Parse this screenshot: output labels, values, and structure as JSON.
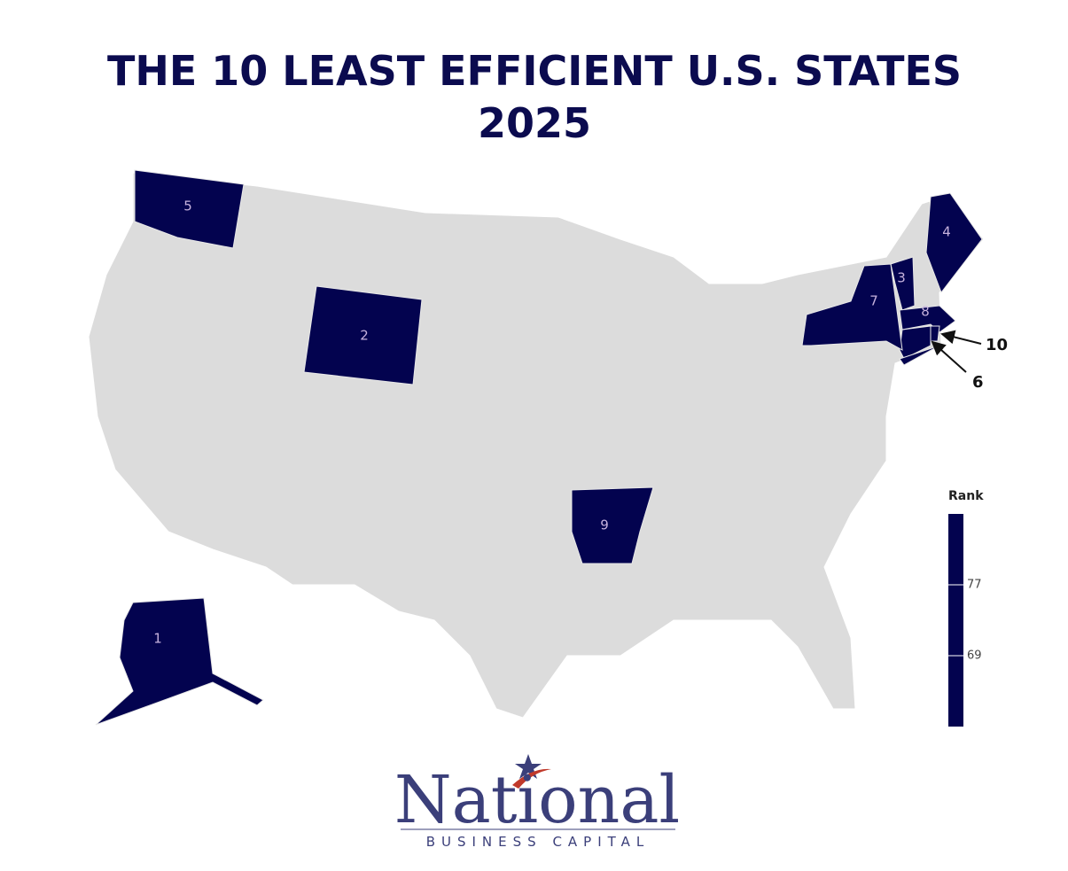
{
  "title": [
    "THE 10 LEAST EFFICIENT U.S. STATES",
    "2025"
  ],
  "regions": [
    {
      "rank": "1"
    },
    {
      "rank": "2"
    },
    {
      "rank": "3"
    },
    {
      "rank": "4"
    },
    {
      "rank": "5"
    },
    {
      "rank": "6"
    },
    {
      "rank": "7"
    },
    {
      "rank": "8"
    },
    {
      "rank": "9"
    },
    {
      "rank": "10"
    }
  ],
  "legend": {
    "title": "Rank",
    "lim": [
      85,
      61
    ],
    "ticks": [
      77,
      69
    ],
    "color": "#03034f"
  },
  "logo": {
    "name": "National",
    "tagline": "BUSINESS CAPITAL"
  }
}
